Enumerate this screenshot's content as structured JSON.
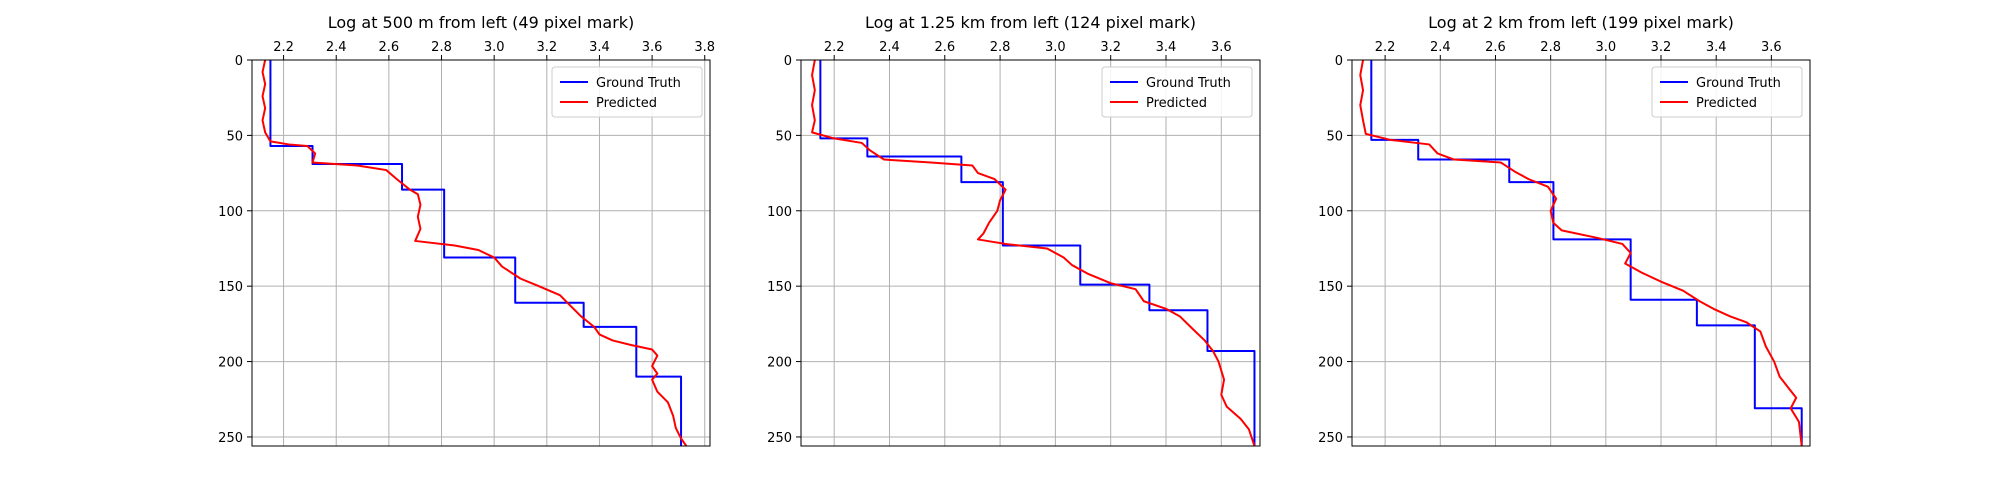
{
  "chart_data": [
    {
      "type": "line",
      "title": "Log at 500 m from left (49 pixel mark)",
      "xlim": [
        2.08,
        3.82
      ],
      "ylim": [
        256,
        0
      ],
      "y_inverted": true,
      "x_ticks": [
        "2.2",
        "2.4",
        "2.6",
        "2.8",
        "3.0",
        "3.2",
        "3.4",
        "3.6",
        "3.8"
      ],
      "y_ticks": [
        "0",
        "50",
        "100",
        "150",
        "200",
        "250"
      ],
      "x_tick_position": "top",
      "grid": true,
      "legend_position": "top-right",
      "series": [
        {
          "name": "Ground Truth",
          "color": "#0000ff",
          "points": [
            [
              2.15,
              0
            ],
            [
              2.15,
              57
            ],
            [
              2.31,
              57
            ],
            [
              2.31,
              69
            ],
            [
              2.65,
              69
            ],
            [
              2.65,
              86
            ],
            [
              2.81,
              86
            ],
            [
              2.81,
              131
            ],
            [
              3.08,
              131
            ],
            [
              3.08,
              161
            ],
            [
              3.34,
              161
            ],
            [
              3.34,
              177
            ],
            [
              3.54,
              177
            ],
            [
              3.54,
              210
            ],
            [
              3.71,
              210
            ],
            [
              3.71,
              256
            ]
          ]
        },
        {
          "name": "Predicted",
          "color": "#ff0000",
          "points": [
            [
              2.13,
              0
            ],
            [
              2.12,
              8
            ],
            [
              2.13,
              16
            ],
            [
              2.12,
              24
            ],
            [
              2.13,
              32
            ],
            [
              2.12,
              40
            ],
            [
              2.13,
              48
            ],
            [
              2.15,
              54
            ],
            [
              2.22,
              56
            ],
            [
              2.29,
              57
            ],
            [
              2.32,
              62
            ],
            [
              2.31,
              68
            ],
            [
              2.48,
              70
            ],
            [
              2.59,
              73
            ],
            [
              2.63,
              79
            ],
            [
              2.68,
              86
            ],
            [
              2.71,
              89
            ],
            [
              2.72,
              96
            ],
            [
              2.71,
              104
            ],
            [
              2.72,
              112
            ],
            [
              2.7,
              120
            ],
            [
              2.85,
              123
            ],
            [
              2.94,
              126
            ],
            [
              3.0,
              131
            ],
            [
              3.03,
              137
            ],
            [
              3.1,
              145
            ],
            [
              3.17,
              150
            ],
            [
              3.25,
              156
            ],
            [
              3.29,
              163
            ],
            [
              3.33,
              170
            ],
            [
              3.38,
              177
            ],
            [
              3.4,
              182
            ],
            [
              3.45,
              186
            ],
            [
              3.52,
              189
            ],
            [
              3.6,
              192
            ],
            [
              3.62,
              196
            ],
            [
              3.6,
              203
            ],
            [
              3.62,
              208
            ],
            [
              3.6,
              212
            ],
            [
              3.62,
              220
            ],
            [
              3.66,
              227
            ],
            [
              3.68,
              236
            ],
            [
              3.69,
              244
            ],
            [
              3.71,
              251
            ],
            [
              3.73,
              256
            ]
          ]
        }
      ]
    },
    {
      "type": "line",
      "title": "Log at 1.25 km from left (124 pixel mark)",
      "xlim": [
        2.08,
        3.74
      ],
      "ylim": [
        256,
        0
      ],
      "y_inverted": true,
      "x_ticks": [
        "2.2",
        "2.4",
        "2.6",
        "2.8",
        "3.0",
        "3.2",
        "3.4",
        "3.6"
      ],
      "y_ticks": [
        "0",
        "50",
        "100",
        "150",
        "200",
        "250"
      ],
      "x_tick_position": "top",
      "grid": true,
      "legend_position": "top-right",
      "series": [
        {
          "name": "Ground Truth",
          "color": "#0000ff",
          "points": [
            [
              2.15,
              0
            ],
            [
              2.15,
              52
            ],
            [
              2.32,
              52
            ],
            [
              2.32,
              64
            ],
            [
              2.66,
              64
            ],
            [
              2.66,
              81
            ],
            [
              2.81,
              81
            ],
            [
              2.81,
              123
            ],
            [
              3.09,
              123
            ],
            [
              3.09,
              149
            ],
            [
              3.34,
              149
            ],
            [
              3.34,
              166
            ],
            [
              3.55,
              166
            ],
            [
              3.55,
              193
            ],
            [
              3.72,
              193
            ],
            [
              3.72,
              256
            ]
          ]
        },
        {
          "name": "Predicted",
          "color": "#ff0000",
          "points": [
            [
              2.13,
              0
            ],
            [
              2.12,
              10
            ],
            [
              2.13,
              20
            ],
            [
              2.12,
              30
            ],
            [
              2.13,
              40
            ],
            [
              2.12,
              48
            ],
            [
              2.2,
              52
            ],
            [
              2.3,
              55
            ],
            [
              2.33,
              60
            ],
            [
              2.38,
              66
            ],
            [
              2.55,
              68
            ],
            [
              2.7,
              70
            ],
            [
              2.72,
              75
            ],
            [
              2.78,
              79
            ],
            [
              2.82,
              86
            ],
            [
              2.8,
              93
            ],
            [
              2.79,
              100
            ],
            [
              2.76,
              108
            ],
            [
              2.74,
              115
            ],
            [
              2.72,
              119
            ],
            [
              2.82,
              122
            ],
            [
              2.97,
              125
            ],
            [
              3.03,
              131
            ],
            [
              3.06,
              136
            ],
            [
              3.12,
              142
            ],
            [
              3.2,
              148
            ],
            [
              3.29,
              152
            ],
            [
              3.32,
              160
            ],
            [
              3.4,
              165
            ],
            [
              3.45,
              170
            ],
            [
              3.5,
              179
            ],
            [
              3.54,
              186
            ],
            [
              3.57,
              193
            ],
            [
              3.59,
              200
            ],
            [
              3.61,
              212
            ],
            [
              3.6,
              222
            ],
            [
              3.62,
              230
            ],
            [
              3.67,
              238
            ],
            [
              3.7,
              245
            ],
            [
              3.72,
              256
            ]
          ]
        }
      ]
    },
    {
      "type": "line",
      "title": "Log at 2 km from left (199 pixel mark)",
      "xlim": [
        2.08,
        3.74
      ],
      "ylim": [
        256,
        0
      ],
      "y_inverted": true,
      "x_ticks": [
        "2.2",
        "2.4",
        "2.6",
        "2.8",
        "3.0",
        "3.2",
        "3.4",
        "3.6"
      ],
      "y_ticks": [
        "0",
        "50",
        "100",
        "150",
        "200",
        "250"
      ],
      "x_tick_position": "top",
      "grid": true,
      "legend_position": "top-right",
      "series": [
        {
          "name": "Ground Truth",
          "color": "#0000ff",
          "points": [
            [
              2.15,
              0
            ],
            [
              2.15,
              53
            ],
            [
              2.32,
              53
            ],
            [
              2.32,
              66
            ],
            [
              2.65,
              66
            ],
            [
              2.65,
              81
            ],
            [
              2.81,
              81
            ],
            [
              2.81,
              119
            ],
            [
              3.09,
              119
            ],
            [
              3.09,
              159
            ],
            [
              3.33,
              159
            ],
            [
              3.33,
              176
            ],
            [
              3.54,
              176
            ],
            [
              3.54,
              231
            ],
            [
              3.71,
              231
            ],
            [
              3.71,
              256
            ]
          ]
        },
        {
          "name": "Predicted",
          "color": "#ff0000",
          "points": [
            [
              2.12,
              0
            ],
            [
              2.11,
              10
            ],
            [
              2.12,
              20
            ],
            [
              2.11,
              30
            ],
            [
              2.12,
              40
            ],
            [
              2.13,
              49
            ],
            [
              2.22,
              53
            ],
            [
              2.36,
              56
            ],
            [
              2.39,
              62
            ],
            [
              2.45,
              66
            ],
            [
              2.62,
              68
            ],
            [
              2.67,
              74
            ],
            [
              2.72,
              79
            ],
            [
              2.79,
              84
            ],
            [
              2.82,
              92
            ],
            [
              2.8,
              100
            ],
            [
              2.81,
              108
            ],
            [
              2.84,
              113
            ],
            [
              2.97,
              118
            ],
            [
              3.06,
              122
            ],
            [
              3.09,
              128
            ],
            [
              3.07,
              135
            ],
            [
              3.13,
              141
            ],
            [
              3.2,
              147
            ],
            [
              3.28,
              153
            ],
            [
              3.34,
              160
            ],
            [
              3.39,
              165
            ],
            [
              3.45,
              170
            ],
            [
              3.51,
              174
            ],
            [
              3.56,
              180
            ],
            [
              3.58,
              190
            ],
            [
              3.61,
              200
            ],
            [
              3.63,
              210
            ],
            [
              3.66,
              217
            ],
            [
              3.69,
              224
            ],
            [
              3.67,
              231
            ],
            [
              3.7,
              240
            ],
            [
              3.71,
              256
            ]
          ]
        }
      ]
    }
  ]
}
